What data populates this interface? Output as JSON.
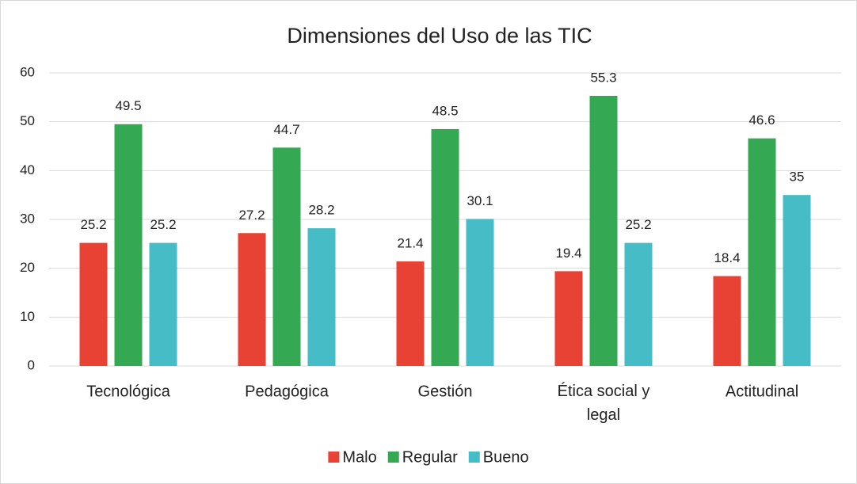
{
  "chart_data": {
    "type": "bar",
    "title": "Dimensiones del Uso de las TIC",
    "categories": [
      "Tecnológica",
      "Pedagógica",
      "Gestión",
      "Ética social y legal",
      "Actitudinal"
    ],
    "series": [
      {
        "name": "Malo",
        "color": "#e84234",
        "values": [
          25.2,
          27.2,
          21.4,
          19.4,
          18.4
        ]
      },
      {
        "name": "Regular",
        "color": "#34a853",
        "values": [
          49.5,
          44.7,
          48.5,
          55.3,
          46.6
        ]
      },
      {
        "name": "Bueno",
        "color": "#46bdc6",
        "values": [
          25.2,
          28.2,
          30.1,
          25.2,
          35
        ]
      }
    ],
    "ylim": [
      0,
      60
    ],
    "yticks": [
      0,
      10,
      20,
      30,
      40,
      50,
      60
    ],
    "grid": true,
    "legend": "bottom"
  }
}
